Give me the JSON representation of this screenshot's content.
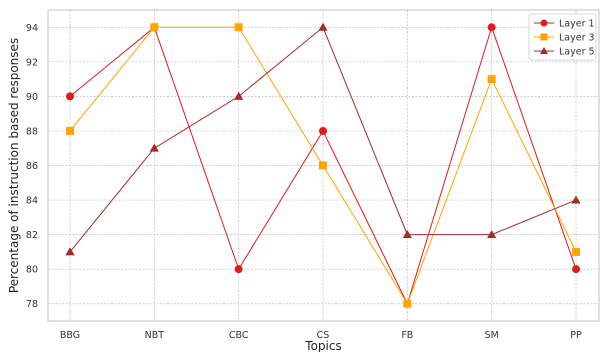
{
  "chart_data": {
    "type": "line",
    "xlabel": "Topics",
    "ylabel": "Percentage of instruction based responses",
    "categories": [
      "BBG",
      "NBT",
      "CBC",
      "CS",
      "FB",
      "SM",
      "PP"
    ],
    "yticks": [
      78,
      80,
      82,
      84,
      86,
      88,
      90,
      92,
      94
    ],
    "ylim": [
      77,
      95
    ],
    "grid": true,
    "legend_position": "top-right",
    "series": [
      {
        "name": "Layer 1",
        "marker": "circle",
        "color": "#e31a1c",
        "values": [
          90,
          94,
          80,
          88,
          78,
          94,
          80
        ]
      },
      {
        "name": "Layer 3",
        "marker": "square",
        "color": "#ffa500",
        "values": [
          88,
          94,
          94,
          86,
          78,
          91,
          81
        ]
      },
      {
        "name": "Layer 5",
        "marker": "triangle",
        "color": "#a52a2a",
        "values": [
          81,
          87,
          90,
          94,
          82,
          82,
          84
        ]
      }
    ]
  }
}
